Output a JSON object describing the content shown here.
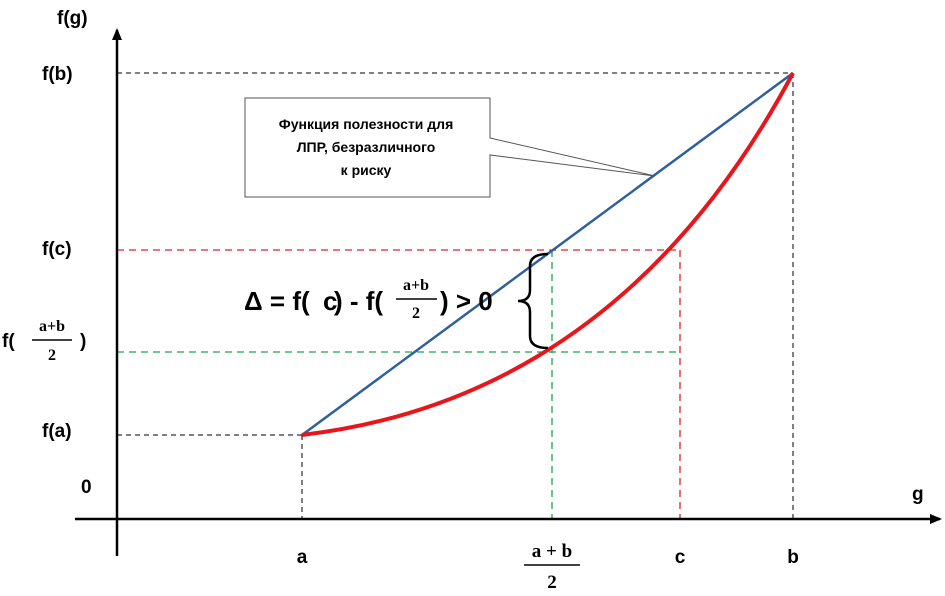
{
  "axes": {
    "y_label": "f(g)",
    "x_label": "g",
    "origin_label": "0"
  },
  "y_ticks": {
    "fb": "f(b)",
    "fc": "f(c)",
    "fa": "f(a)",
    "fmid_prefix": "f(",
    "fmid_num": "a+b",
    "fmid_den": "2",
    "fmid_suffix": ")"
  },
  "x_ticks": {
    "a": "a",
    "mid_num": "a + b",
    "mid_den": "2",
    "c": "c",
    "b": "b"
  },
  "callout": {
    "line1": "Функция полезности для",
    "line2": "ЛПР, безразличного",
    "line3": "к риску"
  },
  "formula": {
    "left": "Δ = f(",
    "c": "c",
    "mid": ") - f(",
    "num": "a+b",
    "den": "2",
    "right": ") > 0"
  },
  "colors": {
    "axis": "#000000",
    "linear": "#2e5f9e",
    "convex": "#e8161b",
    "red_guide": "#d9262c",
    "green_guide": "#1fa34a",
    "black_guide": "#000000"
  }
}
